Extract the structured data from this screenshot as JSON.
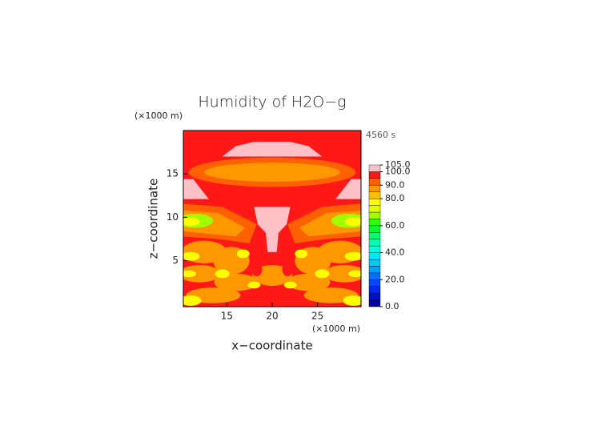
{
  "chart_data": {
    "type": "contour",
    "title": "Humidity of H2O−g",
    "x_label": "x−coordinate",
    "y_label": "z−coordinate",
    "x_unit": "(×1000 m)",
    "y_unit": "(×1000 m)",
    "time_label": "4560 s",
    "xlim": [
      10.2,
      29.8
    ],
    "ylim": [
      -0.3,
      20
    ],
    "xticks": [
      15,
      20,
      25
    ],
    "yticks": [
      5,
      10,
      15
    ],
    "levels": [
      0,
      5,
      10,
      15,
      20,
      25,
      30,
      35,
      40,
      45,
      50,
      55,
      60,
      65,
      70,
      75,
      80,
      85,
      90,
      95,
      100,
      105
    ],
    "colors": [
      "#0000a0",
      "#0010c8",
      "#0028e8",
      "#0048ff",
      "#0070ff",
      "#00a0ff",
      "#00c8ff",
      "#00e8ff",
      "#00ffe0",
      "#00ffb0",
      "#00ff70",
      "#00ff30",
      "#30ff00",
      "#a0ff00",
      "#e0ff00",
      "#ffff00",
      "#ffc000",
      "#ff9800",
      "#ff6000",
      "#ff1818",
      "#ffc0c8"
    ],
    "colorbar_ticks": [
      {
        "value": 0,
        "label": "0.0"
      },
      {
        "value": 20,
        "label": "20.0"
      },
      {
        "value": 40,
        "label": "40.0"
      },
      {
        "value": 60,
        "label": "60.0"
      },
      {
        "value": 80,
        "label": "80.0"
      },
      {
        "value": 90,
        "label": "90.0"
      },
      {
        "value": 100,
        "label": "100.0"
      },
      {
        "value": 105,
        "label": "105.0"
      }
    ]
  }
}
